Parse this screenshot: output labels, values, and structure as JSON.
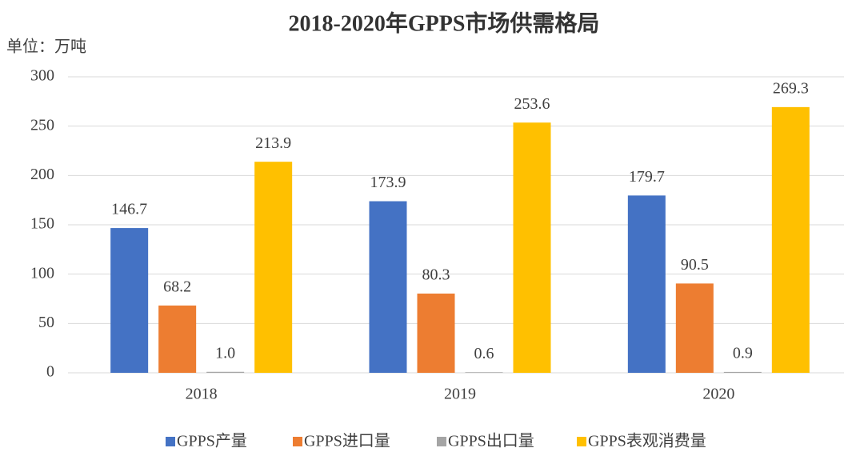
{
  "chart_data": {
    "type": "bar",
    "title": "2018-2020年GPPS市场供需格局",
    "ylabel": "单位：万吨",
    "categories": [
      "2018",
      "2019",
      "2020"
    ],
    "series": [
      {
        "name": "GPPS产量",
        "color": "#4472c4",
        "values": [
          146.7,
          173.9,
          179.7
        ]
      },
      {
        "name": "GPPS进口量",
        "color": "#ed7d31",
        "values": [
          68.2,
          80.3,
          90.5
        ]
      },
      {
        "name": "GPPS出口量",
        "color": "#a5a5a5",
        "values": [
          1.0,
          0.6,
          0.9
        ],
        "value_labels": [
          "1.0",
          "0.6",
          "0.9"
        ]
      },
      {
        "name": "GPPS表观消费量",
        "color": "#ffc000",
        "values": [
          213.9,
          253.6,
          269.3
        ]
      }
    ],
    "ylim": [
      0,
      300
    ],
    "yticks": [
      0,
      50,
      100,
      150,
      200,
      250,
      300
    ],
    "grid": true,
    "legend": "bottom"
  }
}
